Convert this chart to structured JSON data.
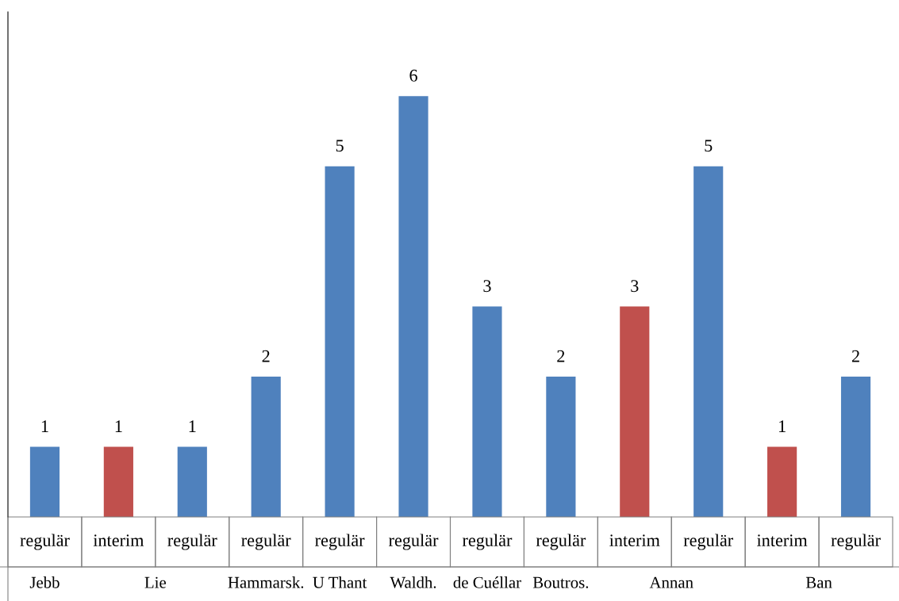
{
  "chart_data": {
    "type": "bar",
    "categories": [
      "regulär",
      "interim",
      "regulär",
      "regulär",
      "regulär",
      "regulär",
      "regulär",
      "regulär",
      "interim",
      "regulär",
      "interim",
      "regulär"
    ],
    "values": [
      1,
      1,
      1,
      2,
      5,
      6,
      3,
      2,
      3,
      5,
      1,
      2
    ],
    "colors": [
      "#4f81bd",
      "#c0504d",
      "#4f81bd",
      "#4f81bd",
      "#4f81bd",
      "#4f81bd",
      "#4f81bd",
      "#4f81bd",
      "#c0504d",
      "#4f81bd",
      "#c0504d",
      "#4f81bd"
    ],
    "data_labels": true,
    "annotations": [
      "Jebb",
      "Lie",
      "Hammarsk.",
      "U Thant",
      "Waldh.",
      "de Cuéllar",
      "Boutros.",
      "Annan",
      "Ban"
    ]
  }
}
